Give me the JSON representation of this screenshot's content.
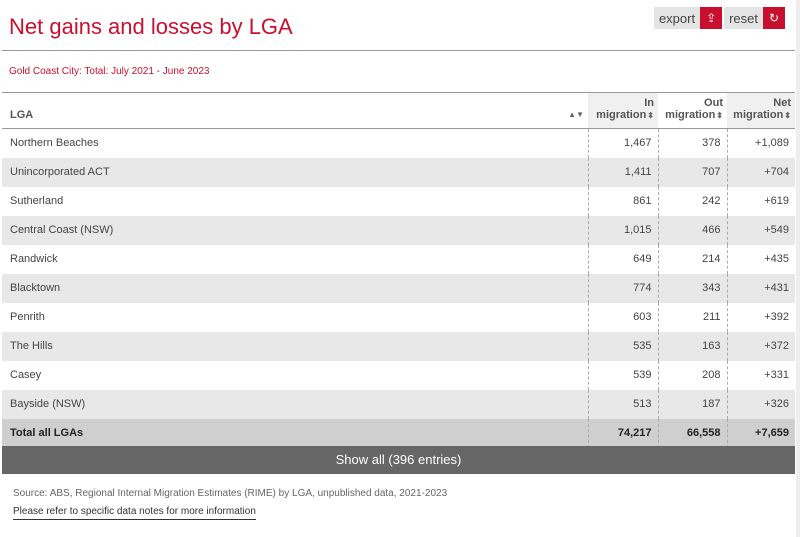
{
  "title": "Net gains and losses by LGA",
  "toolbar": {
    "export_label": "export",
    "reset_label": "reset",
    "export_icon": "export-icon",
    "reset_icon": "reset-icon"
  },
  "subtitle": "Gold Coast City: Total: July 2021 - June 2023",
  "columns": {
    "lga": "LGA",
    "in_1": "In",
    "in_2": "migration",
    "out_1": "Out",
    "out_2": "migration",
    "net_1": "Net",
    "net_2": "migration"
  },
  "rows": [
    [
      "Northern Beaches",
      "1,467",
      "378",
      "+1,089"
    ],
    [
      "Unincorporated ACT",
      "1,411",
      "707",
      "+704"
    ],
    [
      "Sutherland",
      "861",
      "242",
      "+619"
    ],
    [
      "Central Coast (NSW)",
      "1,015",
      "466",
      "+549"
    ],
    [
      "Randwick",
      "649",
      "214",
      "+435"
    ],
    [
      "Blacktown",
      "774",
      "343",
      "+431"
    ],
    [
      "Penrith",
      "603",
      "211",
      "+392"
    ],
    [
      "The Hills",
      "535",
      "163",
      "+372"
    ],
    [
      "Casey",
      "539",
      "208",
      "+331"
    ],
    [
      "Bayside (NSW)",
      "513",
      "187",
      "+326"
    ]
  ],
  "total": [
    "Total all LGAs",
    "74,217",
    "66,558",
    "+7,659"
  ],
  "show_all": "Show all (396 entries)",
  "source": "Source: ABS, Regional Internal Migration Estimates (RIME) by LGA, unpublished data, 2021-2023",
  "note_link": "Please refer to specific data notes for more information",
  "colors": {
    "accent": "#c8102e",
    "show_all_bg": "#666666"
  }
}
